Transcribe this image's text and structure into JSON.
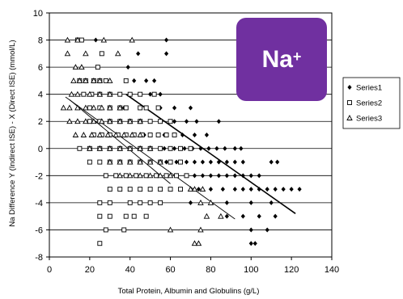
{
  "chart_data": {
    "type": "scatter",
    "title": "",
    "xlabel": "Total Protein, Albumin and Globulins (g/L)",
    "ylabel": "Na Difference Y (Indirect ISE) - X (Direct ISE) (mmol/L)",
    "xlim": [
      0,
      140
    ],
    "ylim": [
      -8,
      10
    ],
    "x_ticks": [
      0,
      20,
      40,
      60,
      80,
      100,
      120,
      140
    ],
    "y_ticks": [
      10,
      8,
      6,
      4,
      2,
      0,
      -2,
      -4,
      -6,
      -8
    ],
    "grid": "horizontal",
    "legend_position": "right",
    "series": [
      {
        "name": "Series1",
        "marker": "diamond-filled",
        "color": "#000000",
        "points": [
          [
            23,
            8
          ],
          [
            58,
            8
          ],
          [
            44,
            7
          ],
          [
            58,
            7
          ],
          [
            39,
            6
          ],
          [
            42,
            5
          ],
          [
            48,
            5
          ],
          [
            52,
            5
          ],
          [
            50,
            4
          ],
          [
            55,
            4
          ],
          [
            37,
            3
          ],
          [
            45,
            3
          ],
          [
            55,
            3
          ],
          [
            62,
            3
          ],
          [
            70,
            3
          ],
          [
            35,
            2
          ],
          [
            45,
            2
          ],
          [
            55,
            2
          ],
          [
            62,
            2
          ],
          [
            68,
            2
          ],
          [
            73,
            2
          ],
          [
            84,
            2
          ],
          [
            47,
            1
          ],
          [
            57,
            1
          ],
          [
            62,
            1
          ],
          [
            66,
            1
          ],
          [
            72,
            1
          ],
          [
            78,
            1
          ],
          [
            57,
            0
          ],
          [
            62,
            0
          ],
          [
            67,
            0
          ],
          [
            71,
            0
          ],
          [
            75,
            0
          ],
          [
            79,
            0
          ],
          [
            83,
            0
          ],
          [
            87,
            0
          ],
          [
            92,
            0
          ],
          [
            95,
            0
          ],
          [
            58,
            -1
          ],
          [
            63,
            -1
          ],
          [
            68,
            -1
          ],
          [
            72,
            -1
          ],
          [
            76,
            -1
          ],
          [
            80,
            -1
          ],
          [
            84,
            -1
          ],
          [
            88,
            -1
          ],
          [
            92,
            -1
          ],
          [
            96,
            -1
          ],
          [
            110,
            -1
          ],
          [
            113,
            -1
          ],
          [
            72,
            -2
          ],
          [
            76,
            -2
          ],
          [
            80,
            -2
          ],
          [
            84,
            -2
          ],
          [
            88,
            -2
          ],
          [
            92,
            -2
          ],
          [
            96,
            -2
          ],
          [
            100,
            -2
          ],
          [
            104,
            -2
          ],
          [
            74,
            -3
          ],
          [
            80,
            -3
          ],
          [
            86,
            -3
          ],
          [
            92,
            -3
          ],
          [
            96,
            -3
          ],
          [
            100,
            -3
          ],
          [
            104,
            -3
          ],
          [
            108,
            -3
          ],
          [
            112,
            -3
          ],
          [
            116,
            -3
          ],
          [
            120,
            -3
          ],
          [
            124,
            -3
          ],
          [
            70,
            -4
          ],
          [
            88,
            -4
          ],
          [
            100,
            -4
          ],
          [
            110,
            -4
          ],
          [
            88,
            -5
          ],
          [
            96,
            -5
          ],
          [
            104,
            -5
          ],
          [
            112,
            -5
          ],
          [
            100,
            -6
          ],
          [
            108,
            -6
          ],
          [
            100,
            -7
          ],
          [
            102,
            -7
          ]
        ]
      },
      {
        "name": "Series2",
        "marker": "square-open",
        "color": "#000000",
        "points": [
          [
            14,
            8
          ],
          [
            16,
            8
          ],
          [
            26,
            7
          ],
          [
            24,
            6
          ],
          [
            15,
            5
          ],
          [
            18,
            5
          ],
          [
            22,
            5
          ],
          [
            25,
            5
          ],
          [
            28,
            5
          ],
          [
            38,
            5
          ],
          [
            17,
            4
          ],
          [
            21,
            4
          ],
          [
            25,
            4
          ],
          [
            30,
            4
          ],
          [
            35,
            4
          ],
          [
            40,
            4
          ],
          [
            45,
            4
          ],
          [
            52,
            4
          ],
          [
            20,
            3
          ],
          [
            25,
            3
          ],
          [
            30,
            3
          ],
          [
            35,
            3
          ],
          [
            38,
            3
          ],
          [
            45,
            3
          ],
          [
            48,
            3
          ],
          [
            54,
            3
          ],
          [
            20,
            2
          ],
          [
            25,
            2
          ],
          [
            30,
            2
          ],
          [
            35,
            2
          ],
          [
            40,
            2
          ],
          [
            45,
            2
          ],
          [
            50,
            2
          ],
          [
            55,
            2
          ],
          [
            60,
            2
          ],
          [
            22,
            1
          ],
          [
            26,
            1
          ],
          [
            30,
            1
          ],
          [
            34,
            1
          ],
          [
            38,
            1
          ],
          [
            42,
            1
          ],
          [
            46,
            1
          ],
          [
            50,
            1
          ],
          [
            54,
            1
          ],
          [
            58,
            1
          ],
          [
            62,
            1
          ],
          [
            15,
            0
          ],
          [
            20,
            0
          ],
          [
            25,
            0
          ],
          [
            30,
            0
          ],
          [
            35,
            0
          ],
          [
            40,
            0
          ],
          [
            45,
            0
          ],
          [
            50,
            0
          ],
          [
            55,
            0
          ],
          [
            60,
            0
          ],
          [
            65,
            0
          ],
          [
            70,
            0
          ],
          [
            20,
            -1
          ],
          [
            25,
            -1
          ],
          [
            30,
            -1
          ],
          [
            35,
            -1
          ],
          [
            40,
            -1
          ],
          [
            45,
            -1
          ],
          [
            50,
            -1
          ],
          [
            55,
            -1
          ],
          [
            60,
            -1
          ],
          [
            65,
            -1
          ],
          [
            28,
            -2
          ],
          [
            33,
            -2
          ],
          [
            38,
            -2
          ],
          [
            43,
            -2
          ],
          [
            48,
            -2
          ],
          [
            53,
            -2
          ],
          [
            58,
            -2
          ],
          [
            63,
            -2
          ],
          [
            68,
            -2
          ],
          [
            30,
            -3
          ],
          [
            35,
            -3
          ],
          [
            40,
            -3
          ],
          [
            45,
            -3
          ],
          [
            50,
            -3
          ],
          [
            55,
            -3
          ],
          [
            60,
            -3
          ],
          [
            65,
            -3
          ],
          [
            25,
            -4
          ],
          [
            30,
            -4
          ],
          [
            40,
            -4
          ],
          [
            45,
            -4
          ],
          [
            50,
            -4
          ],
          [
            55,
            -4
          ],
          [
            25,
            -5
          ],
          [
            30,
            -5
          ],
          [
            38,
            -5
          ],
          [
            42,
            -5
          ],
          [
            48,
            -5
          ],
          [
            28,
            -6
          ],
          [
            37,
            -6
          ],
          [
            25,
            -7
          ]
        ]
      },
      {
        "name": "Series3",
        "marker": "triangle-open",
        "color": "#000000",
        "points": [
          [
            9,
            8
          ],
          [
            14,
            8
          ],
          [
            27,
            8
          ],
          [
            41,
            8
          ],
          [
            9,
            7
          ],
          [
            18,
            7
          ],
          [
            34,
            7
          ],
          [
            13,
            6
          ],
          [
            16,
            6
          ],
          [
            12,
            5
          ],
          [
            15,
            5
          ],
          [
            18,
            5
          ],
          [
            22,
            5
          ],
          [
            25,
            5
          ],
          [
            30,
            5
          ],
          [
            11,
            4
          ],
          [
            14,
            4
          ],
          [
            20,
            4
          ],
          [
            25,
            4
          ],
          [
            30,
            4
          ],
          [
            7,
            3
          ],
          [
            10,
            3
          ],
          [
            14,
            3
          ],
          [
            18,
            3
          ],
          [
            22,
            3
          ],
          [
            26,
            3
          ],
          [
            30,
            3
          ],
          [
            35,
            3
          ],
          [
            10,
            2
          ],
          [
            14,
            2
          ],
          [
            18,
            2
          ],
          [
            22,
            2
          ],
          [
            26,
            2
          ],
          [
            30,
            2
          ],
          [
            35,
            2
          ],
          [
            40,
            2
          ],
          [
            45,
            2
          ],
          [
            13,
            1
          ],
          [
            17,
            1
          ],
          [
            21,
            1
          ],
          [
            25,
            1
          ],
          [
            29,
            1
          ],
          [
            33,
            1
          ],
          [
            37,
            1
          ],
          [
            41,
            1
          ],
          [
            45,
            1
          ],
          [
            20,
            0
          ],
          [
            25,
            0
          ],
          [
            30,
            0
          ],
          [
            35,
            0
          ],
          [
            40,
            0
          ],
          [
            45,
            0
          ],
          [
            50,
            0
          ],
          [
            30,
            -1
          ],
          [
            35,
            -1
          ],
          [
            40,
            -1
          ],
          [
            45,
            -1
          ],
          [
            50,
            -1
          ],
          [
            55,
            -1
          ],
          [
            35,
            -2
          ],
          [
            40,
            -2
          ],
          [
            45,
            -2
          ],
          [
            50,
            -2
          ],
          [
            55,
            -2
          ],
          [
            60,
            -2
          ],
          [
            70,
            -3
          ],
          [
            72,
            -3
          ],
          [
            76,
            -3
          ],
          [
            75,
            -4
          ],
          [
            80,
            -4
          ],
          [
            78,
            -5
          ],
          [
            85,
            -5
          ],
          [
            60,
            -6
          ],
          [
            75,
            -6
          ],
          [
            72,
            -7
          ],
          [
            74,
            -7
          ]
        ]
      }
    ],
    "trendlines": [
      {
        "series": "Series1",
        "from": [
          38,
          4
        ],
        "to": [
          122,
          -4.8
        ]
      },
      {
        "series": "Series2",
        "from": [
          10,
          3.6
        ],
        "to": [
          60,
          -2.6
        ]
      },
      {
        "series": "Series3",
        "from": [
          8,
          3.8
        ],
        "to": [
          92,
          -5.2
        ]
      }
    ]
  },
  "badge": {
    "text": "Na",
    "superscript": "+",
    "color": "#7030a0"
  }
}
